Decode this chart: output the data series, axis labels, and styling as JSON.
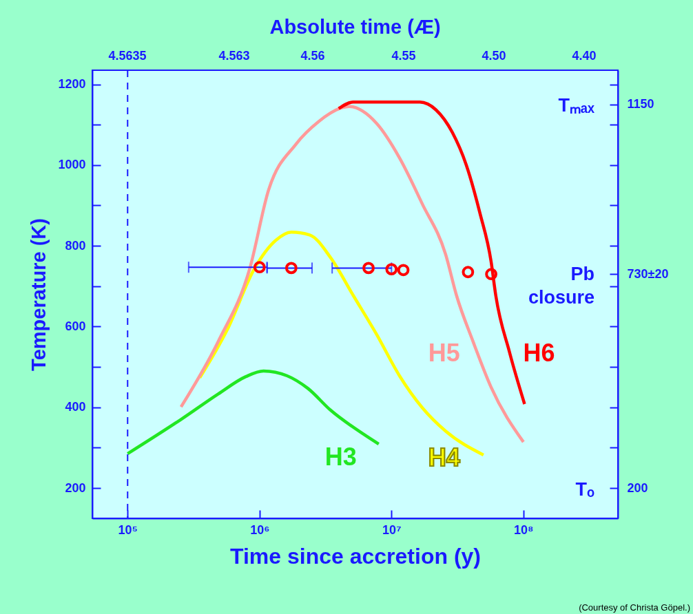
{
  "chart_data": {
    "type": "line",
    "xlabel": "Time since accretion (y)",
    "ylabel": "Temperature (K)",
    "log": "x",
    "grid": false,
    "xlim": [
      54000,
      520000000
    ],
    "xticks": [
      {
        "value": 100000,
        "label": "10⁵"
      },
      {
        "value": 1000000,
        "label": "10⁶"
      },
      {
        "value": 10000000,
        "label": "10⁷"
      },
      {
        "value": 100000000,
        "label": "10⁸"
      }
    ],
    "ylim": [
      125,
      1235
    ],
    "yticks": [
      200,
      {
        "value": 300,
        "label": null
      },
      400,
      {
        "value": 500,
        "label": null
      },
      600,
      {
        "value": 700,
        "label": null
      },
      800,
      {
        "value": 900,
        "label": null
      },
      1000,
      {
        "value": 1100,
        "label": null
      },
      1200
    ],
    "y2lim": [
      125,
      1235
    ],
    "y2ticks": [
      200,
      {
        "value": 300,
        "label": null
      },
      {
        "value": 400,
        "label": null
      },
      {
        "value": 500,
        "label": null
      },
      {
        "value": 600,
        "label": null
      },
      {
        "value": 700,
        "label": null
      },
      {
        "value": 730,
        "label": "730±20"
      },
      {
        "value": 800,
        "label": null
      },
      {
        "value": 900,
        "label": null
      },
      {
        "value": 1000,
        "label": null
      },
      {
        "value": 1100,
        "label": null
      },
      {
        "value": 1150,
        "label": "1150"
      },
      {
        "value": 1200,
        "label": null
      }
    ],
    "series": [
      {
        "name": "H3",
        "color": "#22e622",
        "x": [
          100000,
          254000,
          486000,
          787000,
          1070000,
          1620000,
          2320000,
          3450000,
          6300000,
          8000000
        ],
        "values": [
          285,
          370,
          433,
          476,
          490,
          478,
          447,
          393,
          331,
          309
        ]
      },
      {
        "name": "H4",
        "color": "#ffff00",
        "x": [
          352000,
          569000,
          920000,
          1320000,
          1740000,
          2400000,
          3450000,
          5130000,
          7730000,
          11500000,
          17100000,
          25700000,
          49800000
        ],
        "values": [
          473,
          592,
          745,
          813,
          834,
          827,
          771,
          677,
          580,
          478,
          399,
          341,
          282
        ]
      },
      {
        "name": "H5",
        "color": "#ff9999",
        "x": [
          254000,
          486000,
          845000,
          1170000,
          1890000,
          2810000,
          4040000,
          4780000,
          7730000,
          11500000,
          17100000,
          25700000,
          31100000,
          41500000,
          56800000,
          100000000
        ],
        "values": [
          401,
          563,
          745,
          938,
          1052,
          1108,
          1140,
          1145,
          1103,
          1018,
          904,
          779,
          677,
          563,
          450,
          314
        ]
      },
      {
        "name": "H6",
        "color": "#ff0000",
        "x": [
          3980000,
          5130000,
          16400000,
          21700000,
          28900000,
          36800000,
          46800000,
          56800000,
          61700000,
          78500000,
          102000000
        ],
        "values": [
          1140,
          1156,
          1156,
          1137,
          1081,
          1001,
          881,
          762,
          677,
          536,
          408
        ]
      },
      {
        "type": "scatter",
        "color": "#ff0000",
        "marker": "circle",
        "x": [
          1000000,
          1740000,
          6700000,
          10000000,
          12300000,
          38000000,
          57000000
        ],
        "values": [
          747,
          745,
          745,
          742,
          740,
          735,
          730
        ],
        "xerrors": [
          [
            290000,
            1140000
          ],
          [
            1140000,
            2500000
          ],
          [
            3550000,
            10000000
          ],
          null,
          null,
          null,
          null
        ]
      }
    ],
    "ref_lines": [
      {
        "axis": "x",
        "value": 100000,
        "color": "#1a1aff",
        "line_style": "dashed"
      }
    ],
    "annotations": [
      "Absolute time (Æ)",
      "4.5635",
      "4.563",
      "4.56",
      "4.55",
      "4.50",
      "4.40",
      "Tₘₐₓ",
      "Pb closure",
      "Tₒ",
      "(Courtesy of Christa Göpel.)"
    ]
  }
}
